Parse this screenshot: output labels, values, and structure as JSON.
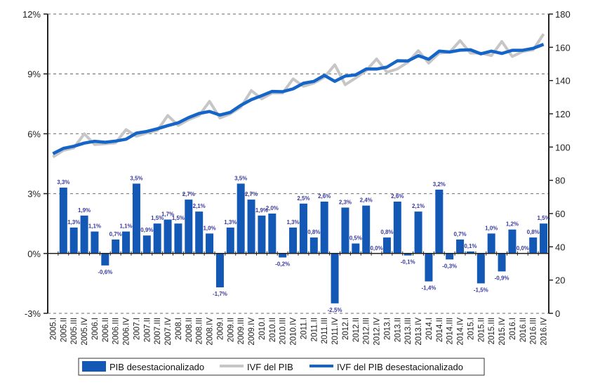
{
  "chart_data": {
    "type": "bar+line",
    "title": "",
    "categories": [
      "2005.I",
      "2005.II",
      "2005.III",
      "2005.IV",
      "2006.I",
      "2006.II",
      "2006.III",
      "2006.IV",
      "2007.I",
      "2007.II",
      "2007.III",
      "2007.IV",
      "2008.I",
      "2008.II",
      "2008.III",
      "2008.IV",
      "2009.I",
      "2009.II",
      "2009.III",
      "2009.IV",
      "2010.I",
      "2010.II",
      "2010.III",
      "2010.IV",
      "2011.I",
      "2011.II",
      "2011.III",
      "2011.IV",
      "2012.I",
      "2012.II",
      "2012.III",
      "2012.IV",
      "2013.I",
      "2013.II",
      "2013.III",
      "2013.IV",
      "2014.I",
      "2014.II",
      "2014.III",
      "2014.IV",
      "2015.I",
      "2015.II",
      "2015.III",
      "2015.IV",
      "2016.I",
      "2016.II",
      "2016.III",
      "2016.IV"
    ],
    "left_axis": {
      "min": -3,
      "max": 12,
      "ticks": [
        -3,
        0,
        3,
        6,
        9,
        12
      ],
      "tick_labels": [
        "-3%",
        "0%",
        "3%",
        "6%",
        "9%",
        "12%"
      ]
    },
    "right_axis": {
      "min": 0,
      "max": 180,
      "ticks": [
        0,
        20,
        40,
        60,
        80,
        100,
        120,
        140,
        160,
        180
      ],
      "tick_labels": [
        "0",
        "20",
        "40",
        "60",
        "80",
        "100",
        "120",
        "140",
        "160",
        "180"
      ]
    },
    "grid": "dashed horizontal at left-axis ticks",
    "legend_position": "bottom",
    "series": [
      {
        "name": "PIB desestacionalizado",
        "type": "bar",
        "axis": "left",
        "color": "#1358b4",
        "values": [
          null,
          3.3,
          1.3,
          1.9,
          1.1,
          -0.6,
          0.7,
          1.1,
          3.5,
          0.9,
          1.5,
          1.7,
          1.5,
          2.7,
          2.1,
          1.0,
          -1.7,
          1.3,
          3.5,
          2.7,
          1.9,
          2.0,
          -0.2,
          1.3,
          2.5,
          0.8,
          2.6,
          -2.5,
          2.3,
          0.5,
          2.4,
          0.0,
          0.8,
          2.6,
          -0.1,
          2.1,
          -1.4,
          3.2,
          -0.3,
          0.7,
          0.1,
          -1.5,
          1.0,
          -0.9,
          1.2,
          0.0,
          0.8,
          1.5
        ],
        "labels": [
          null,
          "3,3%",
          "1,3%",
          "1,9%",
          "1,1%",
          "-0,6%",
          "0,7%",
          "1,1%",
          "3,5%",
          "0,9%",
          "1,5%",
          "1,7%",
          "1,5%",
          "2,7%",
          "2,1%",
          "1,0%",
          "-1,7%",
          "1,3%",
          "3,5%",
          "2,7%",
          "1,9%",
          "2,0%",
          "-0,2%",
          "1,3%",
          "2,5%",
          "0,8%",
          "2,6%",
          "-2,5%",
          "2,3%",
          "0,5%",
          "2,4%",
          "0,0%",
          "0,8%",
          "2,6%",
          "-0,1%",
          "2,1%",
          "-1,4%",
          "3,2%",
          "-0,3%",
          "0,7%",
          "0,1%",
          "-1,5%",
          "1,0%",
          "-0,9%",
          "1,2%",
          "0,0%",
          "0,8%",
          "1,5%"
        ]
      },
      {
        "name": "IVF del PIB",
        "type": "line",
        "axis": "right",
        "color": "#c6c6c6",
        "values": [
          94,
          98,
          99.5,
          108,
          101.5,
          102,
          102.5,
          110.5,
          106.5,
          108.5,
          110,
          119,
          113,
          116.5,
          119,
          127.5,
          117.5,
          120,
          124,
          134,
          129,
          132.5,
          132.5,
          141,
          136.5,
          138.5,
          142,
          149.5,
          137.5,
          141.5,
          146,
          153,
          145,
          147,
          151,
          158,
          150.5,
          156.5,
          157,
          164,
          156.5,
          156.5,
          155,
          163.5,
          154.5,
          157.5,
          158.5,
          168
        ]
      },
      {
        "name": "IVF del PIB desestacionalizado",
        "type": "line",
        "axis": "right",
        "color": "#1565c8",
        "values": [
          96,
          99.2,
          100.5,
          102.4,
          103.5,
          102.9,
          103.6,
          104.7,
          108.4,
          109.4,
          111.0,
          112.9,
          114.6,
          117.7,
          120.2,
          121.4,
          119.3,
          120.9,
          125.1,
          128.5,
          130.9,
          133.5,
          133.3,
          135.0,
          138.4,
          139.5,
          143.1,
          139.5,
          142.7,
          143.4,
          146.9,
          146.9,
          148.1,
          151.9,
          151.8,
          155.0,
          152.8,
          157.7,
          157.2,
          158.3,
          158.5,
          156.1,
          157.7,
          156.3,
          158.2,
          158.2,
          159.4,
          161.8
        ]
      }
    ]
  }
}
